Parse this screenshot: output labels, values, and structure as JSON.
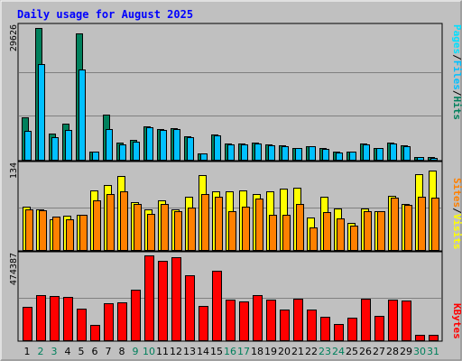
{
  "title": "Daily usage for August 2025",
  "colors": {
    "background": "#c0c0c0",
    "title": "#0000ff",
    "hits": "#00805c",
    "files": "#00c0ff",
    "pages": "#00e0ff",
    "visits": "#ffff00",
    "sites": "#ff8000",
    "kbytes": "#ff0000",
    "weekday_label": "#000000",
    "weekend_label": "#00805c"
  },
  "chart_data": [
    {
      "type": "bar",
      "ylabel_parts": [
        "Pages",
        "Files",
        "Hits"
      ],
      "ymax_label": "29626",
      "ylim": [
        0,
        29626
      ],
      "categories": [
        "1",
        "2",
        "3",
        "4",
        "5",
        "6",
        "7",
        "8",
        "9",
        "10",
        "11",
        "12",
        "13",
        "14",
        "15",
        "16",
        "17",
        "18",
        "19",
        "20",
        "21",
        "22",
        "23",
        "24",
        "25",
        "26",
        "27",
        "28",
        "29",
        "30",
        "31"
      ],
      "weekend_days": [
        "2",
        "3",
        "9",
        "10",
        "16",
        "17",
        "23",
        "24",
        "30",
        "31"
      ],
      "series": [
        {
          "name": "Hits",
          "values": [
            9500,
            29626,
            5800,
            8200,
            28400,
            1900,
            10200,
            3800,
            4400,
            7600,
            6900,
            7200,
            5300,
            1500,
            5600,
            3600,
            3600,
            3900,
            3400,
            3300,
            2700,
            3100,
            2600,
            1800,
            1900,
            3600,
            2700,
            3900,
            3300,
            700,
            600
          ]
        },
        {
          "name": "Files",
          "values": [
            6500,
            21500,
            5000,
            6600,
            20200,
            1800,
            7000,
            3500,
            4100,
            7400,
            6700,
            7000,
            5100,
            1400,
            5400,
            3400,
            3400,
            3700,
            3200,
            3100,
            2600,
            3000,
            2500,
            1700,
            1800,
            3400,
            2600,
            3700,
            3100,
            600,
            500
          ]
        },
        {
          "name": "Pages",
          "values": [
            0,
            0,
            0,
            0,
            0,
            0,
            0,
            0,
            0,
            0,
            0,
            0,
            0,
            0,
            0,
            0,
            0,
            0,
            0,
            0,
            0,
            0,
            0,
            0,
            0,
            0,
            0,
            0,
            0,
            0,
            0
          ]
        }
      ]
    },
    {
      "type": "bar",
      "ylabel_parts": [
        "Sites",
        "Visits"
      ],
      "ymax_label": "134",
      "ylim": [
        0,
        134
      ],
      "categories": [
        "1",
        "2",
        "3",
        "4",
        "5",
        "6",
        "7",
        "8",
        "9",
        "10",
        "11",
        "12",
        "13",
        "14",
        "15",
        "16",
        "17",
        "18",
        "19",
        "20",
        "21",
        "22",
        "23",
        "24",
        "25",
        "26",
        "27",
        "28",
        "29",
        "30",
        "31"
      ],
      "series": [
        {
          "name": "Visits",
          "values": [
            68,
            64,
            49,
            54,
            55,
            94,
            102,
            117,
            75,
            64,
            79,
            64,
            84,
            119,
            92,
            92,
            94,
            88,
            92,
            97,
            99,
            51,
            84,
            66,
            43,
            66,
            62,
            85,
            72,
            120,
            125
          ]
        },
        {
          "name": "Sites",
          "values": [
            64,
            63,
            53,
            49,
            55,
            79,
            88,
            92,
            72,
            57,
            72,
            61,
            67,
            89,
            84,
            62,
            68,
            81,
            55,
            56,
            72,
            36,
            60,
            50,
            39,
            62,
            61,
            83,
            71,
            84,
            83
          ]
        }
      ]
    },
    {
      "type": "bar",
      "ylabel_parts": [
        "KBytes"
      ],
      "ymax_label": "474387",
      "ylim": [
        0,
        474387
      ],
      "categories": [
        "1",
        "2",
        "3",
        "4",
        "5",
        "6",
        "7",
        "8",
        "9",
        "10",
        "11",
        "12",
        "13",
        "14",
        "15",
        "16",
        "17",
        "18",
        "19",
        "20",
        "21",
        "22",
        "23",
        "24",
        "25",
        "26",
        "27",
        "28",
        "29",
        "30",
        "31"
      ],
      "series": [
        {
          "name": "KBytes",
          "values": [
            186000,
            252000,
            246000,
            244000,
            178000,
            88000,
            205000,
            210000,
            282000,
            474387,
            444000,
            466000,
            362000,
            190000,
            389000,
            225000,
            219000,
            251000,
            226000,
            172000,
            233000,
            173000,
            132000,
            93000,
            127000,
            234000,
            136000,
            226000,
            220000,
            28000,
            28000
          ]
        }
      ]
    }
  ]
}
